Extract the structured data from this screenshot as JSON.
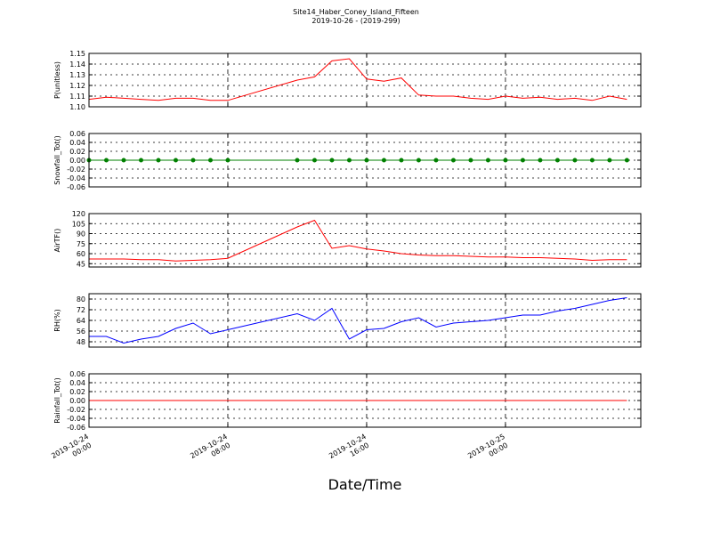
{
  "chart_data": [
    {
      "type": "line",
      "title": "Site14_Haber_Coney_Island_Fifteen",
      "subtitle": "2019-10-26 - (2019-299)",
      "ylabel": "P(unitless)",
      "x": [
        "2019-10-24 00:00",
        "2019-10-24 01:00",
        "2019-10-24 02:00",
        "2019-10-24 03:00",
        "2019-10-24 04:00",
        "2019-10-24 05:00",
        "2019-10-24 06:00",
        "2019-10-24 07:00",
        "2019-10-24 08:00",
        "2019-10-24 12:00",
        "2019-10-24 13:00",
        "2019-10-24 14:00",
        "2019-10-24 15:00",
        "2019-10-24 16:00",
        "2019-10-24 17:00",
        "2019-10-24 18:00",
        "2019-10-24 19:00",
        "2019-10-24 20:00",
        "2019-10-24 21:00",
        "2019-10-24 22:00",
        "2019-10-24 23:00",
        "2019-10-25 00:00",
        "2019-10-25 01:00",
        "2019-10-25 02:00",
        "2019-10-25 03:00",
        "2019-10-25 04:00",
        "2019-10-25 05:00",
        "2019-10-25 06:00",
        "2019-10-25 07:00"
      ],
      "xlim": [
        "2019-10-24 00:00",
        "2019-10-25 07:48"
      ],
      "series": [
        {
          "color": "#ff0000",
          "values": [
            1.107,
            1.109,
            1.108,
            1.107,
            1.106,
            1.108,
            1.108,
            1.106,
            1.106,
            1.125,
            1.128,
            1.143,
            1.145,
            1.126,
            1.124,
            1.127,
            1.111,
            1.11,
            1.11,
            1.108,
            1.107,
            1.11,
            1.108,
            1.109,
            1.107,
            1.108,
            1.106,
            1.11,
            1.107
          ]
        }
      ],
      "ylim": [
        1.1,
        1.15
      ],
      "yticks": [
        {
          "value": 1.1,
          "label": "1.10"
        },
        1.11,
        1.12,
        1.13,
        1.14,
        1.15
      ],
      "grid": true
    },
    {
      "type": "line",
      "ylabel": "Snowfall_Tot()",
      "x": [
        "2019-10-24 00:00",
        "2019-10-24 01:00",
        "2019-10-24 02:00",
        "2019-10-24 03:00",
        "2019-10-24 04:00",
        "2019-10-24 05:00",
        "2019-10-24 06:00",
        "2019-10-24 07:00",
        "2019-10-24 08:00",
        "2019-10-24 12:00",
        "2019-10-24 13:00",
        "2019-10-24 14:00",
        "2019-10-24 15:00",
        "2019-10-24 16:00",
        "2019-10-24 17:00",
        "2019-10-24 18:00",
        "2019-10-24 19:00",
        "2019-10-24 20:00",
        "2019-10-24 21:00",
        "2019-10-24 22:00",
        "2019-10-24 23:00",
        "2019-10-25 00:00",
        "2019-10-25 01:00",
        "2019-10-25 02:00",
        "2019-10-25 03:00",
        "2019-10-25 04:00",
        "2019-10-25 05:00",
        "2019-10-25 06:00",
        "2019-10-25 07:00"
      ],
      "xlim": [
        "2019-10-24 00:00",
        "2019-10-25 07:48"
      ],
      "series": [
        {
          "color": "#008000",
          "marker": true,
          "values": [
            0,
            0,
            0,
            0,
            0,
            0,
            0,
            0,
            0,
            0,
            0,
            0,
            0,
            0,
            0,
            0,
            0,
            0,
            0,
            0,
            0,
            0,
            0,
            0,
            0,
            0,
            0,
            0,
            0
          ]
        }
      ],
      "ylim": [
        -0.06,
        0.06
      ],
      "yticks": [
        -0.06,
        -0.04,
        -0.02,
        {
          "value": 0,
          "label": "0.00"
        },
        0.02,
        0.04,
        0.06
      ],
      "grid": true
    },
    {
      "type": "line",
      "ylabel": "AirTF()",
      "x": [
        "2019-10-24 00:00",
        "2019-10-24 01:00",
        "2019-10-24 02:00",
        "2019-10-24 03:00",
        "2019-10-24 04:00",
        "2019-10-24 05:00",
        "2019-10-24 06:00",
        "2019-10-24 07:00",
        "2019-10-24 08:00",
        "2019-10-24 12:00",
        "2019-10-24 13:00",
        "2019-10-24 14:00",
        "2019-10-24 15:00",
        "2019-10-24 16:00",
        "2019-10-24 17:00",
        "2019-10-24 18:00",
        "2019-10-24 19:00",
        "2019-10-24 20:00",
        "2019-10-24 21:00",
        "2019-10-24 22:00",
        "2019-10-24 23:00",
        "2019-10-25 00:00",
        "2019-10-25 01:00",
        "2019-10-25 02:00",
        "2019-10-25 03:00",
        "2019-10-25 04:00",
        "2019-10-25 05:00",
        "2019-10-25 06:00",
        "2019-10-25 07:00"
      ],
      "xlim": [
        "2019-10-24 00:00",
        "2019-10-25 07:48"
      ],
      "series": [
        {
          "color": "#ff0000",
          "values": [
            52,
            52,
            52,
            51,
            51,
            49,
            50,
            51,
            53,
            100,
            110,
            68,
            72,
            67,
            64,
            60,
            58,
            57,
            57,
            56,
            55,
            55,
            54,
            54,
            53,
            52,
            50,
            51,
            51
          ]
        }
      ],
      "ylim": [
        40,
        120
      ],
      "yticks": [
        45,
        60,
        75,
        90,
        105,
        120
      ],
      "grid": true
    },
    {
      "type": "line",
      "ylabel": "RH(%)",
      "x": [
        "2019-10-24 00:00",
        "2019-10-24 01:00",
        "2019-10-24 02:00",
        "2019-10-24 03:00",
        "2019-10-24 04:00",
        "2019-10-24 05:00",
        "2019-10-24 06:00",
        "2019-10-24 07:00",
        "2019-10-24 08:00",
        "2019-10-24 12:00",
        "2019-10-24 13:00",
        "2019-10-24 14:00",
        "2019-10-24 15:00",
        "2019-10-24 16:00",
        "2019-10-24 17:00",
        "2019-10-24 18:00",
        "2019-10-24 19:00",
        "2019-10-24 20:00",
        "2019-10-24 21:00",
        "2019-10-24 22:00",
        "2019-10-24 23:00",
        "2019-10-25 00:00",
        "2019-10-25 01:00",
        "2019-10-25 02:00",
        "2019-10-25 03:00",
        "2019-10-25 04:00",
        "2019-10-25 05:00",
        "2019-10-25 06:00",
        "2019-10-25 07:00"
      ],
      "xlim": [
        "2019-10-24 00:00",
        "2019-10-25 07:48"
      ],
      "series": [
        {
          "color": "#0000ff",
          "values": [
            52,
            52,
            47,
            50,
            52,
            58,
            62,
            54,
            57,
            69,
            64,
            73,
            50,
            57,
            58,
            63,
            66,
            59,
            62,
            63,
            64,
            66,
            68,
            68,
            71,
            73,
            76,
            79,
            81
          ]
        }
      ],
      "ylim": [
        44,
        84
      ],
      "yticks": [
        48,
        56,
        64,
        72,
        80
      ],
      "grid": true
    },
    {
      "type": "line",
      "ylabel": "Rainfall_Tot()",
      "xlabel": "Date/Time",
      "x": [
        "2019-10-24 00:00",
        "2019-10-24 01:00",
        "2019-10-24 02:00",
        "2019-10-24 03:00",
        "2019-10-24 04:00",
        "2019-10-24 05:00",
        "2019-10-24 06:00",
        "2019-10-24 07:00",
        "2019-10-24 08:00",
        "2019-10-24 12:00",
        "2019-10-24 13:00",
        "2019-10-24 14:00",
        "2019-10-24 15:00",
        "2019-10-24 16:00",
        "2019-10-24 17:00",
        "2019-10-24 18:00",
        "2019-10-24 19:00",
        "2019-10-24 20:00",
        "2019-10-24 21:00",
        "2019-10-24 22:00",
        "2019-10-24 23:00",
        "2019-10-25 00:00",
        "2019-10-25 01:00",
        "2019-10-25 02:00",
        "2019-10-25 03:00",
        "2019-10-25 04:00",
        "2019-10-25 05:00",
        "2019-10-25 06:00",
        "2019-10-25 07:00"
      ],
      "xlim": [
        "2019-10-24 00:00",
        "2019-10-25 07:48"
      ],
      "xticks": [
        "2019-10-24 00:00",
        "2019-10-24 08:00",
        "2019-10-24 16:00",
        "2019-10-25 00:00"
      ],
      "series": [
        {
          "color": "#ff0000",
          "values": [
            0,
            0,
            0,
            0,
            0,
            0,
            0,
            0,
            0,
            0,
            0,
            0,
            0,
            0,
            0,
            0,
            0,
            0,
            0,
            0,
            0,
            0,
            0,
            0,
            0,
            0,
            0,
            0,
            0
          ]
        }
      ],
      "ylim": [
        -0.06,
        0.06
      ],
      "yticks": [
        -0.06,
        -0.04,
        -0.02,
        {
          "value": 0,
          "label": "0.00"
        },
        0.02,
        0.04,
        0.06
      ],
      "grid": true
    }
  ]
}
